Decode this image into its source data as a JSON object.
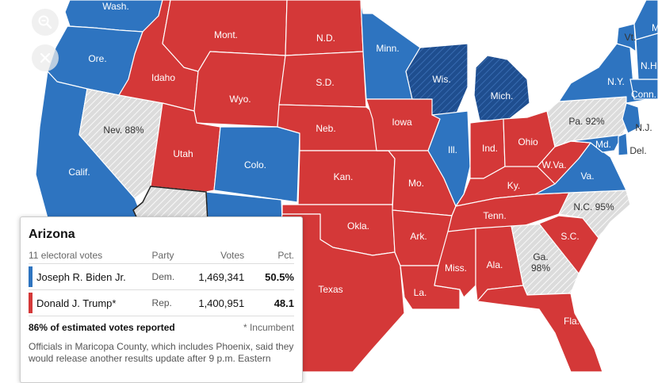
{
  "controls": {
    "zoom_icon": "magnifier-icon",
    "reset_icon": "close-icon"
  },
  "colors": {
    "dem": "#2E74C0",
    "dem_dark": "#1A4A8A",
    "rep": "#D43838",
    "undecided": "#D8D8D8",
    "background": "#ffffff"
  },
  "states": [
    {
      "id": "wash",
      "label": "Wash.",
      "winner": "dem"
    },
    {
      "id": "ore",
      "label": "Ore.",
      "winner": "dem"
    },
    {
      "id": "calif",
      "label": "Calif.",
      "winner": "dem"
    },
    {
      "id": "nev",
      "label": "Nev. 88%",
      "winner": "undecided"
    },
    {
      "id": "idaho",
      "label": "Idaho",
      "winner": "rep"
    },
    {
      "id": "mont",
      "label": "Mont.",
      "winner": "rep"
    },
    {
      "id": "wyo",
      "label": "Wyo.",
      "winner": "rep"
    },
    {
      "id": "utah",
      "label": "Utah",
      "winner": "rep"
    },
    {
      "id": "colo",
      "label": "Colo.",
      "winner": "dem"
    },
    {
      "id": "ariz",
      "label": "",
      "winner": "undecided"
    },
    {
      "id": "nm",
      "label": "",
      "winner": "dem"
    },
    {
      "id": "nd",
      "label": "N.D.",
      "winner": "rep"
    },
    {
      "id": "sd",
      "label": "S.D.",
      "winner": "rep"
    },
    {
      "id": "neb",
      "label": "Neb.",
      "winner": "rep"
    },
    {
      "id": "kan",
      "label": "Kan.",
      "winner": "rep"
    },
    {
      "id": "okla",
      "label": "Okla.",
      "winner": "rep"
    },
    {
      "id": "texas",
      "label": "Texas",
      "winner": "rep"
    },
    {
      "id": "minn",
      "label": "Minn.",
      "winner": "dem"
    },
    {
      "id": "iowa",
      "label": "Iowa",
      "winner": "rep"
    },
    {
      "id": "mo",
      "label": "Mo.",
      "winner": "rep"
    },
    {
      "id": "ark",
      "label": "Ark.",
      "winner": "rep"
    },
    {
      "id": "la",
      "label": "La.",
      "winner": "rep"
    },
    {
      "id": "wis",
      "label": "Wis.",
      "winner": "dem_flip"
    },
    {
      "id": "ill",
      "label": "Ill.",
      "winner": "dem"
    },
    {
      "id": "mich",
      "label": "Mich.",
      "winner": "dem_flip"
    },
    {
      "id": "ind",
      "label": "Ind.",
      "winner": "rep"
    },
    {
      "id": "ohio",
      "label": "Ohio",
      "winner": "rep"
    },
    {
      "id": "ky",
      "label": "Ky.",
      "winner": "rep"
    },
    {
      "id": "tenn",
      "label": "Tenn.",
      "winner": "rep"
    },
    {
      "id": "miss",
      "label": "Miss.",
      "winner": "rep"
    },
    {
      "id": "ala",
      "label": "Ala.",
      "winner": "rep"
    },
    {
      "id": "ga",
      "label": "Ga.\n98%",
      "winner": "undecided"
    },
    {
      "id": "fla",
      "label": "Fla.",
      "winner": "rep"
    },
    {
      "id": "sc",
      "label": "S.C.",
      "winner": "rep"
    },
    {
      "id": "nc",
      "label": "N.C. 95%",
      "winner": "undecided"
    },
    {
      "id": "va",
      "label": "Va.",
      "winner": "dem"
    },
    {
      "id": "wva",
      "label": "W.Va.",
      "winner": "rep"
    },
    {
      "id": "pa",
      "label": "Pa. 92%",
      "winner": "undecided"
    },
    {
      "id": "ny",
      "label": "N.Y.",
      "winner": "dem"
    },
    {
      "id": "vt",
      "label": "Vt.",
      "winner": "dem"
    },
    {
      "id": "nh",
      "label": "N.H.",
      "winner": "dem"
    },
    {
      "id": "conn",
      "label": "Conn.",
      "winner": "dem"
    },
    {
      "id": "nj",
      "label": "N.J.",
      "winner": "dem"
    },
    {
      "id": "md",
      "label": "Md.",
      "winner": "dem"
    },
    {
      "id": "del",
      "label": "Del.",
      "winner": "dem"
    },
    {
      "id": "me",
      "label": "M",
      "winner": "dem"
    }
  ],
  "tooltip": {
    "state": "Arizona",
    "electoral": "11 electoral votes",
    "headers": {
      "party": "Party",
      "votes": "Votes",
      "pct": "Pct."
    },
    "rows": [
      {
        "name": "Joseph R. Biden Jr.",
        "party": "Dem.",
        "votes": "1,469,341",
        "pct": "50.5%",
        "color": "#2E74C0"
      },
      {
        "name": "Donald J. Trump*",
        "party": "Rep.",
        "votes": "1,400,951",
        "pct": "48.1",
        "color": "#D43838"
      }
    ],
    "reported": "86% of estimated votes reported",
    "incumbent": "* Incumbent",
    "note": "Officials in Maricopa County, which includes Phoenix, said they would release another results update after 9 p.m. Eastern"
  }
}
